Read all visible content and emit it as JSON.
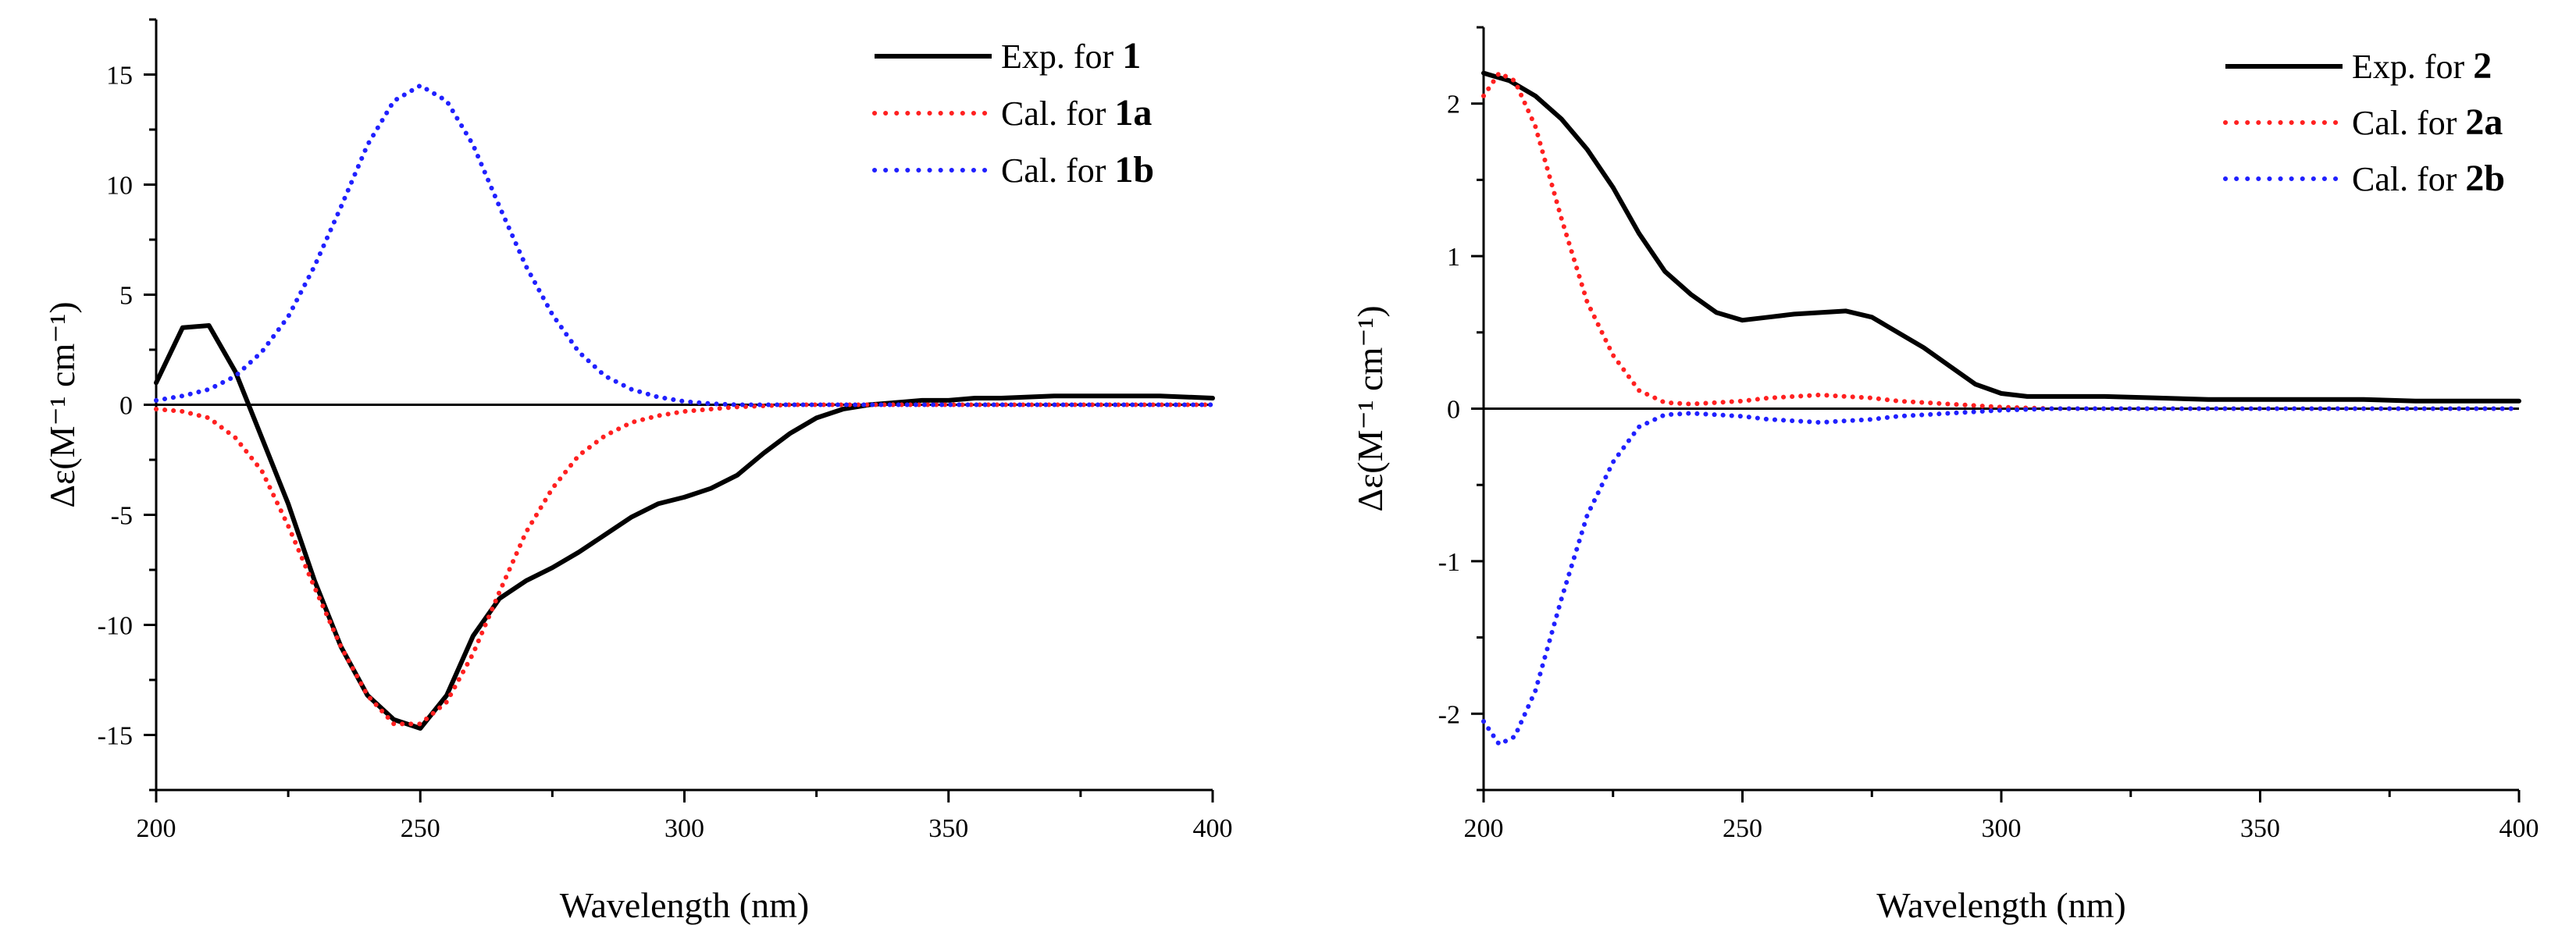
{
  "chart_data": [
    {
      "type": "line",
      "xlabel": "Wavelength (nm)",
      "ylabel": "Δε(M⁻¹ cm⁻¹)",
      "xlim": [
        200,
        400
      ],
      "ylim": [
        -17.5,
        17.5
      ],
      "x_ticks": [
        "200",
        "250",
        "300",
        "350",
        "400"
      ],
      "y_ticks": [
        "-15",
        "-10",
        "-5",
        "0",
        "5",
        "10",
        "15"
      ],
      "legend_position": "top-right",
      "series": [
        {
          "name": "Exp. for 1",
          "label_prefix": "Exp. for",
          "label_bold": "1",
          "color": "#000000",
          "style": "solid",
          "x": [
            200,
            205,
            210,
            215,
            220,
            225,
            230,
            235,
            240,
            245,
            250,
            255,
            260,
            265,
            270,
            275,
            280,
            285,
            290,
            295,
            300,
            305,
            310,
            315,
            320,
            325,
            330,
            335,
            340,
            345,
            350,
            355,
            360,
            370,
            380,
            390,
            400
          ],
          "y": [
            1.0,
            3.5,
            3.6,
            1.5,
            -1.5,
            -4.5,
            -8.0,
            -11.0,
            -13.2,
            -14.3,
            -14.7,
            -13.2,
            -10.5,
            -8.8,
            -8.0,
            -7.4,
            -6.7,
            -5.9,
            -5.1,
            -4.5,
            -4.2,
            -3.8,
            -3.2,
            -2.2,
            -1.3,
            -0.6,
            -0.2,
            0.0,
            0.1,
            0.2,
            0.2,
            0.3,
            0.3,
            0.4,
            0.4,
            0.4,
            0.3
          ]
        },
        {
          "name": "Cal. for 1a",
          "label_prefix": "Cal. for",
          "label_bold": "1a",
          "color": "#ff2020",
          "style": "dotted",
          "x": [
            200,
            205,
            210,
            215,
            220,
            225,
            230,
            235,
            240,
            245,
            250,
            255,
            260,
            265,
            270,
            275,
            280,
            285,
            290,
            295,
            300,
            305,
            310,
            320,
            330,
            340,
            350,
            360,
            380,
            400
          ],
          "y": [
            -0.2,
            -0.3,
            -0.6,
            -1.5,
            -3.0,
            -5.5,
            -8.3,
            -11.0,
            -13.2,
            -14.5,
            -14.5,
            -13.5,
            -11.3,
            -8.5,
            -5.8,
            -3.8,
            -2.3,
            -1.4,
            -0.8,
            -0.5,
            -0.3,
            -0.2,
            -0.1,
            0.0,
            0.0,
            0.0,
            0.0,
            0.0,
            0.0,
            0.0
          ]
        },
        {
          "name": "Cal. for 1b",
          "label_prefix": "Cal. for",
          "label_bold": "1b",
          "color": "#2020ff",
          "style": "dotted",
          "x": [
            200,
            205,
            210,
            215,
            220,
            225,
            230,
            235,
            240,
            245,
            250,
            255,
            260,
            265,
            270,
            275,
            280,
            285,
            290,
            295,
            300,
            305,
            310,
            320,
            330,
            340,
            350,
            360,
            380,
            400
          ],
          "y": [
            0.2,
            0.4,
            0.7,
            1.3,
            2.4,
            4.0,
            6.3,
            9.0,
            11.8,
            13.8,
            14.5,
            13.8,
            11.8,
            9.0,
            6.3,
            4.1,
            2.4,
            1.3,
            0.7,
            0.35,
            0.15,
            0.05,
            0.0,
            0.0,
            0.0,
            0.0,
            0.0,
            0.0,
            0.0,
            0.0
          ]
        }
      ]
    },
    {
      "type": "line",
      "xlabel": "Wavelength (nm)",
      "ylabel": "Δε(M⁻¹ cm⁻¹)",
      "xlim": [
        200,
        400
      ],
      "ylim": [
        -2.5,
        2.5
      ],
      "x_ticks": [
        "200",
        "250",
        "300",
        "350",
        "400"
      ],
      "y_ticks": [
        "-2",
        "-1",
        "0",
        "1",
        "2"
      ],
      "legend_position": "top-right",
      "series": [
        {
          "name": "Exp. for 2",
          "label_prefix": "Exp. for",
          "label_bold": "2",
          "color": "#000000",
          "style": "solid",
          "x": [
            200,
            205,
            210,
            215,
            220,
            225,
            230,
            235,
            240,
            245,
            250,
            255,
            260,
            265,
            270,
            275,
            280,
            285,
            290,
            295,
            300,
            305,
            310,
            320,
            330,
            340,
            350,
            360,
            370,
            380,
            390,
            400
          ],
          "y": [
            2.2,
            2.15,
            2.05,
            1.9,
            1.7,
            1.45,
            1.15,
            0.9,
            0.75,
            0.63,
            0.58,
            0.6,
            0.62,
            0.63,
            0.64,
            0.6,
            0.5,
            0.4,
            0.28,
            0.16,
            0.1,
            0.08,
            0.08,
            0.08,
            0.07,
            0.06,
            0.06,
            0.06,
            0.06,
            0.05,
            0.05,
            0.05
          ]
        },
        {
          "name": "Cal. for 2a",
          "label_prefix": "Cal. for",
          "label_bold": "2a",
          "color": "#ff2020",
          "style": "dotted",
          "x": [
            200,
            203,
            206,
            210,
            215,
            220,
            225,
            230,
            235,
            240,
            245,
            250,
            255,
            260,
            265,
            270,
            275,
            280,
            290,
            300,
            310,
            320,
            340,
            360,
            380,
            400
          ],
          "y": [
            2.05,
            2.2,
            2.15,
            1.85,
            1.25,
            0.7,
            0.35,
            0.12,
            0.04,
            0.03,
            0.04,
            0.05,
            0.07,
            0.08,
            0.09,
            0.08,
            0.07,
            0.05,
            0.03,
            0.01,
            0.0,
            0.0,
            0.0,
            0.0,
            0.0,
            0.0
          ]
        },
        {
          "name": "Cal. for 2b",
          "label_prefix": "Cal. for",
          "label_bold": "2b",
          "color": "#2020ff",
          "style": "dotted",
          "x": [
            200,
            203,
            206,
            210,
            215,
            220,
            225,
            230,
            235,
            240,
            245,
            250,
            255,
            260,
            265,
            270,
            275,
            280,
            290,
            300,
            310,
            320,
            340,
            360,
            380,
            400
          ],
          "y": [
            -2.05,
            -2.2,
            -2.15,
            -1.85,
            -1.25,
            -0.7,
            -0.35,
            -0.12,
            -0.04,
            -0.03,
            -0.04,
            -0.05,
            -0.07,
            -0.08,
            -0.09,
            -0.08,
            -0.07,
            -0.05,
            -0.03,
            -0.01,
            0.0,
            0.0,
            0.0,
            0.0,
            0.0,
            0.0
          ]
        }
      ]
    }
  ]
}
